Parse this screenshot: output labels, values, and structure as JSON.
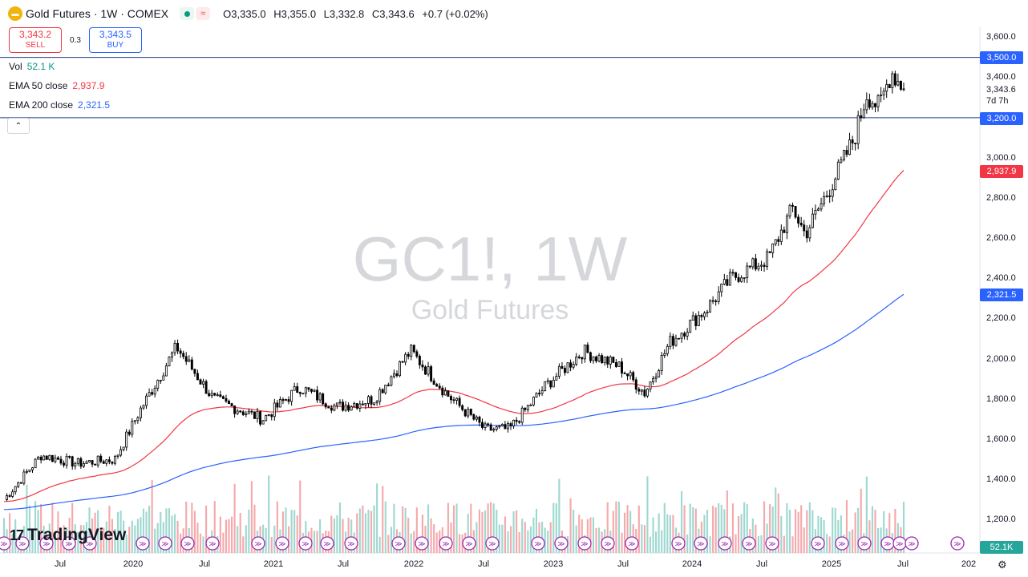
{
  "header": {
    "title": "Gold Futures · 1W · COMEX",
    "ohlc": {
      "o_label": "O",
      "o": "3,335.0",
      "h_label": "H",
      "h": "3,355.0",
      "l_label": "L",
      "l": "3,332.8",
      "c_label": "C",
      "c": "3,343.6",
      "change": "+0.7 (+0.02%)"
    }
  },
  "trade": {
    "sell_price": "3,343.2",
    "sell_label": "SELL",
    "spread": "0.3",
    "buy_price": "3,343.5",
    "buy_label": "BUY"
  },
  "indicators": [
    {
      "label": "Vol",
      "value": "52.1 K",
      "color": "#089981"
    },
    {
      "label": "EMA 50 close",
      "value": "2,937.9",
      "color": "#f23645"
    },
    {
      "label": "EMA 200 close",
      "value": "2,321.5",
      "color": "#2962ff"
    }
  ],
  "watermark": {
    "symbol": "GC1!, 1W",
    "name": "Gold Futures"
  },
  "brand": "TradingView",
  "price_axis": {
    "ticks": [
      "3,600.0",
      "3,400.0",
      "3,000.0",
      "2,800.0",
      "2,600.0",
      "2,400.0",
      "2,200.0",
      "2,000.0",
      "1,800.0",
      "1,600.0",
      "1,400.0",
      "1,200.0"
    ],
    "last_price": "3,343.6",
    "countdown": "7d 7h"
  },
  "badges": [
    {
      "value": "3,500.0",
      "color": "#2962ff"
    },
    {
      "value": "3,200.0",
      "color": "#2962ff"
    },
    {
      "value": "2,937.9",
      "color": "#f23645"
    },
    {
      "value": "2,321.5",
      "color": "#2962ff"
    },
    {
      "value": "52.1K",
      "color": "#26a69a"
    }
  ],
  "time_axis": [
    "Jul",
    "2020",
    "Jul",
    "2021",
    "Jul",
    "2022",
    "Jul",
    "2023",
    "Jul",
    "2024",
    "Jul",
    "2025",
    "Jul",
    "202"
  ],
  "chart_data": {
    "type": "candlestick",
    "interval": "1W",
    "y_range": [
      1200,
      3650
    ],
    "horizontal_levels": [
      3500.0,
      3200.0
    ],
    "key_points": [
      {
        "t": "2019-06",
        "close": 1300
      },
      {
        "t": "2019-09",
        "close": 1520
      },
      {
        "t": "2019-12",
        "close": 1480
      },
      {
        "t": "2020-03",
        "close": 1500
      },
      {
        "t": "2020-05",
        "close": 1740
      },
      {
        "t": "2020-08",
        "close": 2060
      },
      {
        "t": "2020-11",
        "close": 1800
      },
      {
        "t": "2021-03",
        "close": 1700
      },
      {
        "t": "2021-06",
        "close": 1860
      },
      {
        "t": "2021-09",
        "close": 1760
      },
      {
        "t": "2021-12",
        "close": 1800
      },
      {
        "t": "2022-03",
        "close": 2040
      },
      {
        "t": "2022-06",
        "close": 1820
      },
      {
        "t": "2022-09",
        "close": 1650
      },
      {
        "t": "2022-11",
        "close": 1650
      },
      {
        "t": "2023-02",
        "close": 1870
      },
      {
        "t": "2023-05",
        "close": 2040
      },
      {
        "t": "2023-08",
        "close": 1960
      },
      {
        "t": "2023-10",
        "close": 1830
      },
      {
        "t": "2023-12",
        "close": 2080
      },
      {
        "t": "2024-03",
        "close": 2250
      },
      {
        "t": "2024-05",
        "close": 2400
      },
      {
        "t": "2024-08",
        "close": 2500
      },
      {
        "t": "2024-10",
        "close": 2750
      },
      {
        "t": "2024-11",
        "close": 2620
      },
      {
        "t": "2025-01",
        "close": 2850
      },
      {
        "t": "2025-03",
        "close": 3100
      },
      {
        "t": "2025-04",
        "close": 3320
      },
      {
        "t": "2025-05",
        "close": 3250
      },
      {
        "t": "2025-06",
        "close": 3430
      },
      {
        "t": "2025-07",
        "close": 3343.6
      }
    ],
    "ema50_end": 2937.9,
    "ema200_end": 2321.5,
    "volume_last": "52.1K"
  }
}
